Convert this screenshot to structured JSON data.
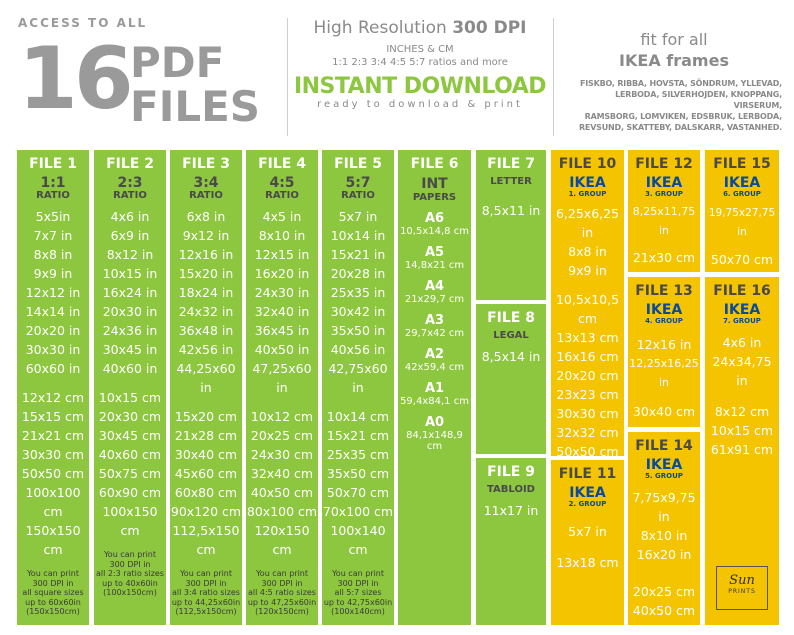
{
  "header": {
    "access": "ACCESS TO ALL",
    "count": "16",
    "pdf": "PDF",
    "files": "FILES",
    "hr_prefix": "High Resolution ",
    "hr_bold": "300 DPI",
    "inches": "INCHES & CM",
    "ratios": "1:1   2:3   3:4   4:5   5:7 ratios and more",
    "instant": "INSTANT DOWNLOAD",
    "ready": "ready to download & print",
    "fit": "fit for all",
    "ikea_frames": "IKEA frames",
    "frames_lines": [
      "FISKBO, RIBBA, HOVSTA, SÖNDRUM, YLLEVAD,",
      "LERBODA, SILVERHOJDEN, KNOPPANG, VIRSERUM,",
      "RAMSBORG, LOMVIKEN, EDSBRUK, LERBODA,",
      "REVSUND, SKATTEBY, DALSKARR, VASTANHED."
    ]
  },
  "ratio_files": [
    {
      "title": "FILE 1",
      "ratio": "1:1",
      "label": "RATIO",
      "inches": [
        "5x5in",
        "7x7 in",
        "8x8 in",
        "9x9 in",
        "12x12 in",
        "14x14 in",
        "20x20 in",
        "30x30 in",
        "60x60 in"
      ],
      "cms": [
        "12x12 cm",
        "15x15 cm",
        "21x21 cm",
        "30x30 cm",
        "50x50 cm",
        "100x100 cm",
        "150x150 cm"
      ],
      "note": [
        "You can print",
        "300 DPI in",
        "all square sizes",
        "up to 60x60in",
        "(150x150cm)"
      ]
    },
    {
      "title": "FILE 2",
      "ratio": "2:3",
      "label": "RATIO",
      "inches": [
        "4x6 in",
        "6x9 in",
        "8x12 in",
        "10x15 in",
        "16x24 in",
        "20x30 in",
        "24x36 in",
        "30x45 in",
        "40x60 in"
      ],
      "cms": [
        "10x15 cm",
        "20x30 cm",
        "30x45 cm",
        "40x60 cm",
        "50x75 cm",
        "60x90 cm",
        "100x150 cm"
      ],
      "note": [
        "You can print",
        "300 DPI in",
        "all 2:3 ratio sizes",
        "up to 40x60in",
        "(100x150cm)"
      ]
    },
    {
      "title": "FILE 3",
      "ratio": "3:4",
      "label": "RATIO",
      "inches": [
        "6x8 in",
        "9x12 in",
        "12x16 in",
        "15x20 in",
        "18x24 in",
        "24x32 in",
        "36x48 in",
        "42x56 in",
        "44,25x60 in"
      ],
      "cms": [
        "15x20 cm",
        "21x28 cm",
        "30x40 cm",
        "45x60 cm",
        "60x80 cm",
        "90x120 cm",
        "112,5x150 cm"
      ],
      "note": [
        "You can print",
        "300 DPI in",
        "all 3:4 ratio sizes",
        "up to 44,25x60in",
        "(112,5x150cm)"
      ]
    },
    {
      "title": "FILE 4",
      "ratio": "4:5",
      "label": "RATIO",
      "inches": [
        "4x5 in",
        "8x10 in",
        "12x15 in",
        "16x20 in",
        "24x30 in",
        "32x40 in",
        "36x45 in",
        "40x50 in",
        "47,25x60 in"
      ],
      "cms": [
        "10x12 cm",
        "20x25 cm",
        "24x30 cm",
        "32x40 cm",
        "40x50 cm",
        "80x100 cm",
        "120x150 cm"
      ],
      "note": [
        "You can print",
        "300 DPI in",
        "all 4:5 ratio sizes",
        "up to 47,25x60in",
        "(120x150cm)"
      ]
    },
    {
      "title": "FILE 5",
      "ratio": "5:7",
      "label": "RATIO",
      "inches": [
        "5x7 in",
        "10x14 in",
        "15x21 in",
        "20x28 in",
        "25x35 in",
        "30x42 in",
        "35x50 in",
        "40x56 in",
        "42,75x60 in"
      ],
      "cms": [
        "10x14 cm",
        "15x21 cm",
        "25x35 cm",
        "35x50 cm",
        "50x70 cm",
        "70x100 cm",
        "100x140 cm"
      ],
      "note": [
        "You can print",
        "300 DPI in",
        "all 5:7 sizes",
        "up to 42,75x60in",
        "(100x140cm)"
      ]
    }
  ],
  "file6": {
    "title": "FILE 6",
    "big": "INT",
    "small": "PAPERS",
    "sizes": [
      {
        "name": "A6",
        "dim": "10,5x14,8 cm"
      },
      {
        "name": "A5",
        "dim": "14,8x21 cm"
      },
      {
        "name": "A4",
        "dim": "21x29,7 cm"
      },
      {
        "name": "A3",
        "dim": "29,7x42 cm"
      },
      {
        "name": "A2",
        "dim": "42x59,4 cm"
      },
      {
        "name": "A1",
        "dim": "59,4x84,1 cm"
      },
      {
        "name": "A0",
        "dim": "84,1x148,9 cm"
      }
    ]
  },
  "file7": {
    "title": "FILE 7",
    "label": "LETTER",
    "size": "8,5x11 in"
  },
  "file8": {
    "title": "FILE 8",
    "label": "LEGAL",
    "size": "8,5x14 in"
  },
  "file9": {
    "title": "FILE 9",
    "label": "TABLOID",
    "size": "11x17 in"
  },
  "file10": {
    "title": "FILE 10",
    "ikea": "IKEA",
    "group": "1. GROUP",
    "sizes_a": [
      "6,25x6,25 in",
      "8x8 in",
      "9x9 in"
    ],
    "sizes_b": [
      "10,5x10,5 cm",
      "13x13 cm",
      "16x16 cm",
      "20x20 cm",
      "23x23 cm",
      "30x30 cm",
      "32x32 cm",
      "50x50 cm"
    ]
  },
  "file11": {
    "title": "FILE 11",
    "ikea": "IKEA",
    "group": "2. GROUP",
    "sizes": [
      "5x7 in",
      "13x18 cm"
    ]
  },
  "file12": {
    "title": "FILE 12",
    "ikea": "IKEA",
    "group": "3. GROUP",
    "sizes": [
      "8,25x11,75 in",
      "21x30 cm"
    ]
  },
  "file13": {
    "title": "FILE 13",
    "ikea": "IKEA",
    "group": "4. GROUP",
    "sizes": [
      "12x16 in",
      "12,25x16,25 in",
      "30x40 cm"
    ]
  },
  "file14": {
    "title": "FILE 14",
    "ikea": "IKEA",
    "group": "5. GROUP",
    "sizes": [
      "7,75x9,75 in",
      "8x10 in",
      "16x20 in",
      "20x25 cm",
      "40x50 cm"
    ]
  },
  "file15": {
    "title": "FILE 15",
    "ikea": "IKEA",
    "group": "6. GROUP",
    "sizes": [
      "19,75x27,75 in",
      "50x70 cm"
    ]
  },
  "file16": {
    "title": "FILE 16",
    "ikea": "IKEA",
    "group": "7. GROUP",
    "sizes": [
      "4x6 in",
      "24x34,75 in",
      "8x12 cm",
      "10x15 cm",
      "61x91 cm"
    ]
  },
  "logo": {
    "mark": "Sun",
    "sub": "PRINTS"
  },
  "colors": {
    "green": "#8dc63f",
    "yellow": "#f5c400",
    "ikea_blue": "#0a4a9c",
    "gray": "#9a9a9a"
  }
}
